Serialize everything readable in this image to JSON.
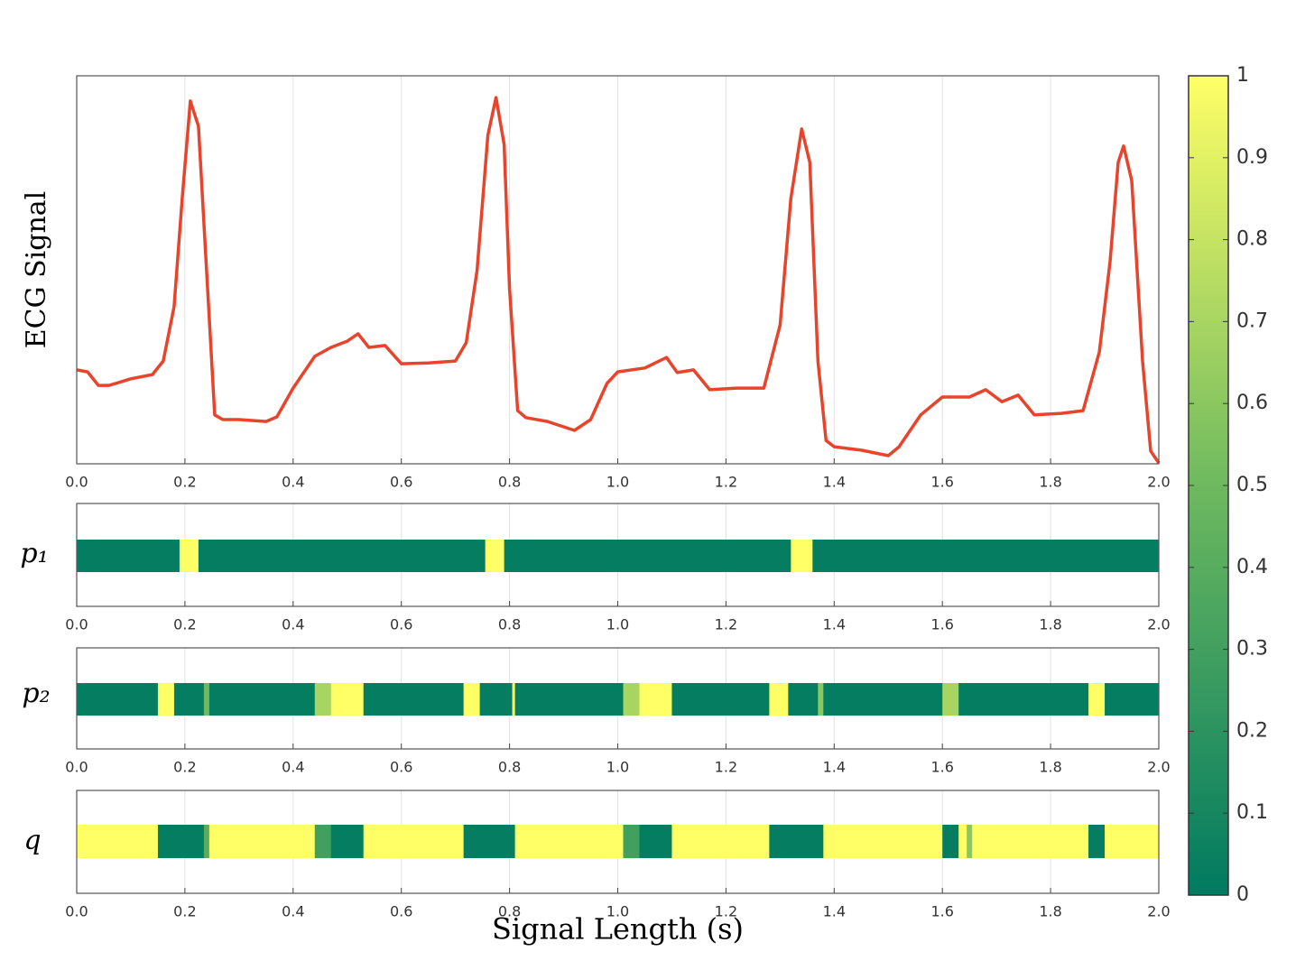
{
  "chart_data": [
    {
      "type": "line",
      "ylabel": "ECG Signal",
      "color": "#e8442c",
      "grid": true,
      "xlim": [
        0,
        2
      ],
      "ylim": [
        0,
        1
      ],
      "xticks": [
        {
          "value": 0,
          "label": "0.0"
        },
        0.2,
        0.4,
        0.6,
        0.8,
        {
          "value": 1,
          "label": "1.0"
        },
        1.2,
        1.4,
        1.6,
        1.8,
        {
          "value": 2,
          "label": "2.0"
        }
      ],
      "x": [
        0,
        0.02,
        0.04,
        0.06,
        0.1,
        0.14,
        0.16,
        0.18,
        0.195,
        0.21,
        0.225,
        0.24,
        0.255,
        0.27,
        0.3,
        0.35,
        0.37,
        0.4,
        0.44,
        0.47,
        0.5,
        0.52,
        0.54,
        0.57,
        0.6,
        0.65,
        0.7,
        0.72,
        0.74,
        0.76,
        0.775,
        0.79,
        0.8,
        0.815,
        0.83,
        0.87,
        0.92,
        0.95,
        0.98,
        1.0,
        1.05,
        1.09,
        1.11,
        1.14,
        1.17,
        1.22,
        1.27,
        1.3,
        1.32,
        1.34,
        1.355,
        1.37,
        1.385,
        1.4,
        1.45,
        1.5,
        1.52,
        1.56,
        1.6,
        1.65,
        1.68,
        1.71,
        1.74,
        1.77,
        1.82,
        1.86,
        1.89,
        1.91,
        1.925,
        1.935,
        1.95,
        1.97,
        1.985,
        2.0
      ],
      "values": [
        0.242,
        0.237,
        0.202,
        0.202,
        0.219,
        0.23,
        0.265,
        0.405,
        0.684,
        0.935,
        0.87,
        0.498,
        0.126,
        0.114,
        0.114,
        0.109,
        0.121,
        0.195,
        0.277,
        0.3,
        0.316,
        0.335,
        0.3,
        0.305,
        0.258,
        0.26,
        0.265,
        0.312,
        0.498,
        0.847,
        0.944,
        0.823,
        0.451,
        0.137,
        0.119,
        0.109,
        0.086,
        0.114,
        0.207,
        0.237,
        0.247,
        0.274,
        0.235,
        0.242,
        0.191,
        0.195,
        0.195,
        0.358,
        0.684,
        0.863,
        0.777,
        0.265,
        0.06,
        0.044,
        0.035,
        0.021,
        0.044,
        0.126,
        0.172,
        0.172,
        0.191,
        0.16,
        0.177,
        0.126,
        0.13,
        0.137,
        0.288,
        0.521,
        0.777,
        0.819,
        0.73,
        0.265,
        0.033,
        0.002
      ]
    },
    {
      "type": "strip",
      "ylabel": "p₁",
      "grid": true,
      "xlim": [
        0,
        2
      ],
      "xticks": [
        {
          "value": 0,
          "label": "0.0"
        },
        0.2,
        0.4,
        0.6,
        0.8,
        {
          "value": 1,
          "label": "1.0"
        },
        1.2,
        1.4,
        1.6,
        1.8,
        {
          "value": 2,
          "label": "2.0"
        }
      ],
      "bins": [
        0,
        0.19,
        0.225,
        0.755,
        0.79,
        1.32,
        1.36,
        2.0
      ],
      "values": [
        0.02,
        1,
        0.02,
        1,
        0.02,
        1,
        0.02
      ]
    },
    {
      "type": "strip",
      "ylabel": "p₂",
      "grid": true,
      "xlim": [
        0,
        2
      ],
      "xticks": [
        {
          "value": 0,
          "label": "0.0"
        },
        0.2,
        0.4,
        0.6,
        0.8,
        {
          "value": 1,
          "label": "1.0"
        },
        1.2,
        1.4,
        1.6,
        1.8,
        {
          "value": 2,
          "label": "2.0"
        }
      ],
      "bins": [
        0,
        0.15,
        0.18,
        0.235,
        0.245,
        0.44,
        0.47,
        0.53,
        0.715,
        0.745,
        0.805,
        0.81,
        1.01,
        1.04,
        1.1,
        1.28,
        1.315,
        1.37,
        1.38,
        1.6,
        1.63,
        1.87,
        1.9,
        2.0
      ],
      "values": [
        0.02,
        1,
        0.02,
        0.5,
        0.02,
        0.7,
        1,
        0.02,
        1,
        0.02,
        1,
        0.02,
        0.7,
        1,
        0.02,
        1,
        0.02,
        0.6,
        0.02,
        0.7,
        0.02,
        1,
        0.02
      ]
    },
    {
      "type": "strip",
      "ylabel": "q",
      "xlabel": "Signal Length (s)",
      "grid": true,
      "xlim": [
        0,
        2
      ],
      "xticks": [
        {
          "value": 0,
          "label": "0.0"
        },
        0.2,
        0.4,
        0.6,
        0.8,
        {
          "value": 1,
          "label": "1.0"
        },
        1.2,
        1.4,
        1.6,
        1.8,
        {
          "value": 2,
          "label": "2.0"
        }
      ],
      "bins": [
        0,
        0.15,
        0.235,
        0.245,
        0.44,
        0.47,
        0.53,
        0.715,
        0.81,
        1.01,
        1.04,
        1.1,
        1.28,
        1.38,
        1.6,
        1.63,
        1.645,
        1.655,
        1.87,
        1.9,
        2.0
      ],
      "values": [
        1,
        0.02,
        0.4,
        1,
        0.3,
        0.02,
        1,
        0.02,
        1,
        0.3,
        0.02,
        1,
        0.02,
        1,
        0.02,
        1,
        0.6,
        1,
        0.02,
        1
      ]
    },
    {
      "type": "colorbar",
      "colormap": [
        "#007a60",
        "#6eb95f",
        "#ffff66"
      ],
      "ylim": [
        0,
        1
      ],
      "yticks": [
        0,
        0.1,
        0.2,
        0.3,
        0.4,
        0.5,
        0.6,
        0.7,
        0.8,
        0.9,
        1
      ]
    }
  ]
}
